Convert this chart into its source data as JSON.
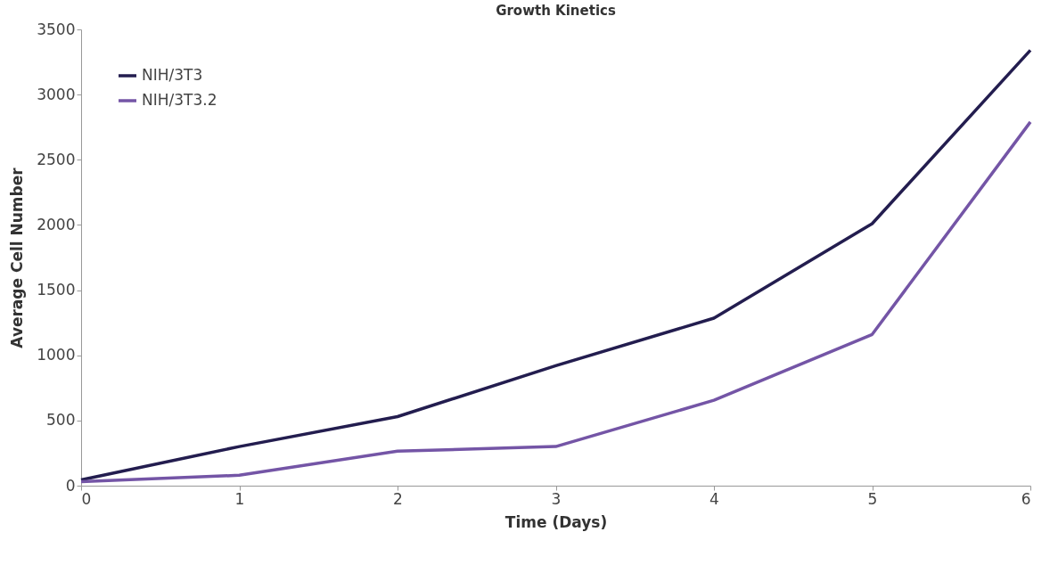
{
  "chart_data": {
    "type": "line",
    "title": "Growth Kinetics",
    "xlabel": "Time (Days)",
    "ylabel": "Average Cell Number",
    "x": [
      0,
      1,
      2,
      3,
      4,
      5,
      6
    ],
    "series": [
      {
        "name": "NIH/3T3",
        "color": "#231d4f",
        "values": [
          45,
          300,
          530,
          920,
          1285,
          2010,
          3340
        ]
      },
      {
        "name": "NIH/3T3.2",
        "color": "#7455a6",
        "values": [
          30,
          80,
          265,
          300,
          655,
          1160,
          2790
        ]
      }
    ],
    "xlim": [
      0,
      6
    ],
    "xticks": [
      0,
      1,
      2,
      3,
      4,
      5,
      6
    ],
    "ylim": [
      0,
      3500
    ],
    "yticks": [
      0,
      500,
      1000,
      1500,
      2000,
      2500,
      3000,
      3500
    ],
    "grid": false,
    "legend": "top left",
    "marker": "none",
    "line_style": "solid"
  }
}
